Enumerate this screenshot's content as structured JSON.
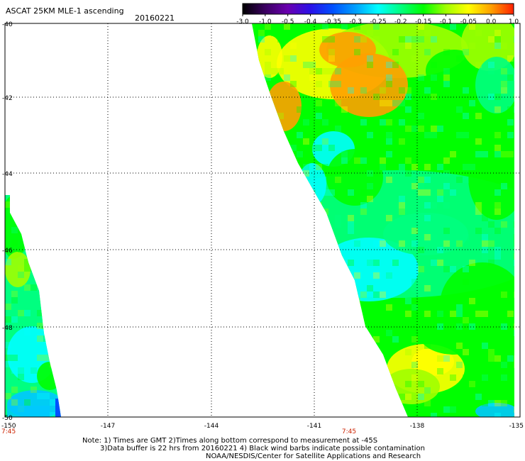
{
  "header": {
    "title": "ASCAT 25KM MLE-1 ascending",
    "date": "20160221"
  },
  "colorbar": {
    "tick_labels": [
      "-3.0",
      "-1.0",
      "-0.5",
      "-0.4",
      "-0.35",
      "-0.3",
      "-0.25",
      "-0.2",
      "-0.15",
      "-0.1",
      "-0.05",
      "0.0",
      "1.0"
    ],
    "colors": [
      "#000000",
      "#3a0060",
      "#6a00b0",
      "#2a10e8",
      "#0050ff",
      "#00a0ff",
      "#00ffff",
      "#00ff80",
      "#00ff00",
      "#a0ff00",
      "#ffff00",
      "#ffa000",
      "#ff2000"
    ]
  },
  "axes": {
    "lon_labels": [
      "-150",
      "-147",
      "-144",
      "-141",
      "-138",
      "-135"
    ],
    "lat_labels": [
      "-40",
      "-42",
      "-44",
      "-46",
      "-48",
      "-50"
    ],
    "time_labels": [
      "7:45",
      "7:45"
    ],
    "time_color": "#cc2200"
  },
  "notes": {
    "line1": "Note: 1) Times are GMT 2)Times along bottom correspond to measurement at -45S",
    "line2": "3)Data buffer is 22 hrs from 20160221 4) Black wind barbs indicate possible contamination",
    "line3": "NOAA/NESDIS/Center for Satellite Applications and Research"
  },
  "map_palette": {
    "orange": "#ffa000",
    "yellow": "#ffff00",
    "yellow_green": "#a0ff00",
    "green": "#00ff00",
    "green_cyan": "#00ff80",
    "cyan": "#00ffff",
    "sky": "#00c8ff",
    "blue": "#0050ff"
  }
}
